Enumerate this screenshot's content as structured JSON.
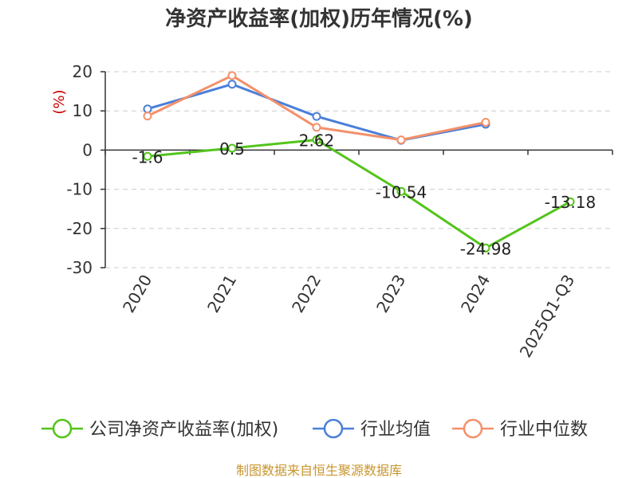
{
  "chart_data": {
    "type": "line",
    "title": "净资产收益率(加权)历年情况(%)",
    "ylabel": "(%)",
    "categories": [
      "2020",
      "2021",
      "2022",
      "2023",
      "2024",
      "2025Q1-Q3"
    ],
    "ylim": [
      -30,
      20
    ],
    "yticks": [
      "20",
      "10",
      "0",
      "-10",
      "-20",
      "-30"
    ],
    "grid": true,
    "legend_position": "bottom",
    "series": [
      {
        "name": "公司净资产收益率(加权)",
        "color": "#52c41a",
        "values": [
          -1.6,
          0.5,
          2.62,
          -10.54,
          -24.98,
          -13.18
        ],
        "labels": [
          "-1.6",
          "0.5",
          "2.62",
          "-10.54",
          "-24.98",
          "-13.18"
        ]
      },
      {
        "name": "行业均值",
        "color": "#4a7fd9",
        "values": [
          10.5,
          16.8,
          8.6,
          2.5,
          6.6,
          null
        ]
      },
      {
        "name": "行业中位数",
        "color": "#f4906a",
        "values": [
          8.7,
          19.0,
          5.8,
          2.6,
          7.1,
          null
        ]
      }
    ]
  },
  "footer": {
    "source": "制图数据来自恒生聚源数据库"
  }
}
